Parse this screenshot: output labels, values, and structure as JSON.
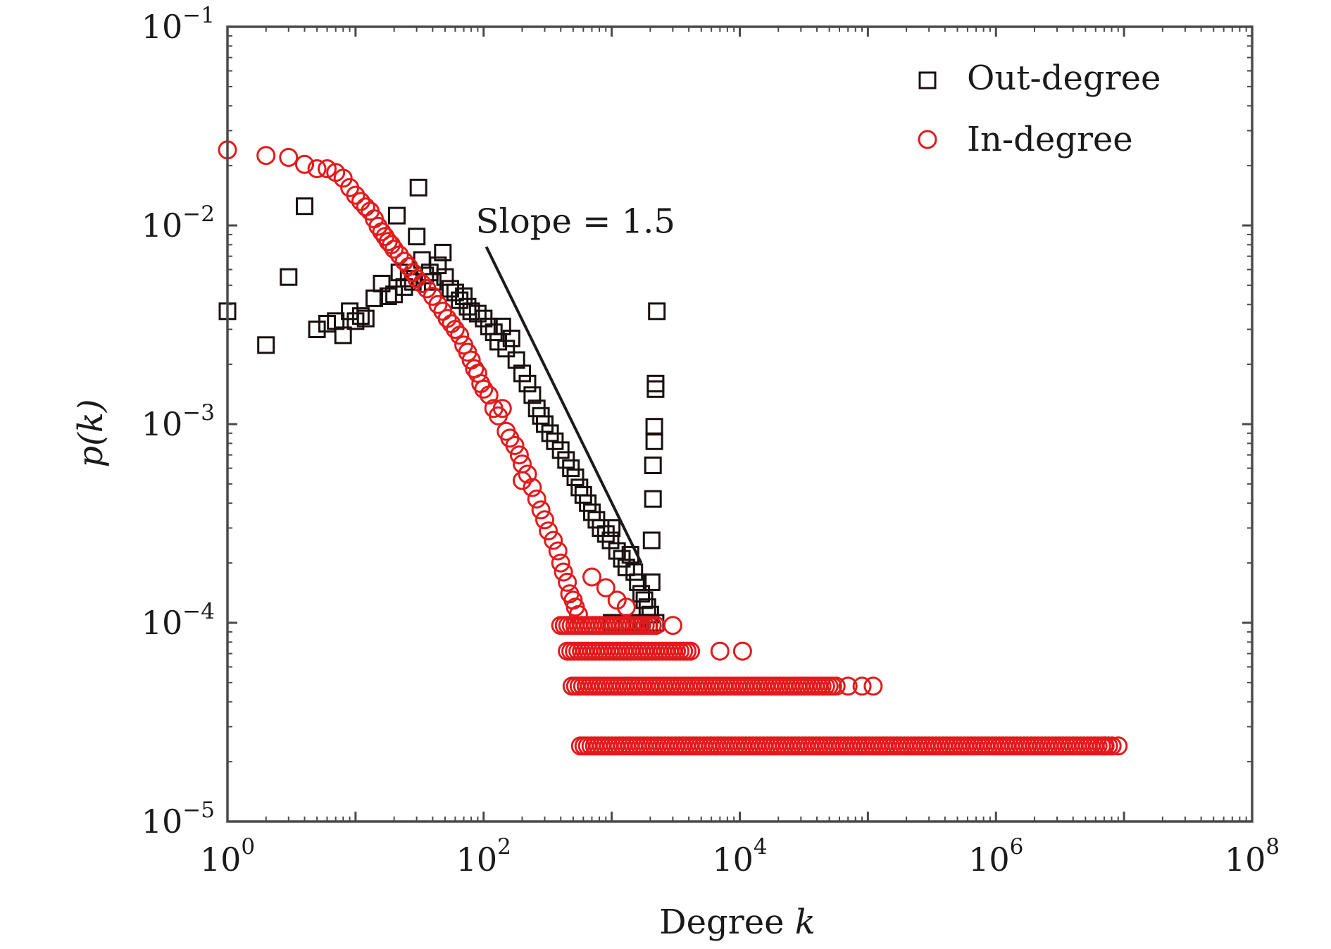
{
  "chart_data": {
    "type": "scatter",
    "scale": {
      "x": "log",
      "y": "log"
    },
    "xlabel": "Degree",
    "xlabel_var": "k",
    "ylabel": "p(k)",
    "xlim": [
      1,
      100000000
    ],
    "ylim": [
      1e-05,
      0.1
    ],
    "grid": false,
    "legend_position": "top-right",
    "x_ticks": [
      {
        "value": 1,
        "base": "10",
        "exp": "0"
      },
      {
        "value": 100,
        "base": "10",
        "exp": "2"
      },
      {
        "value": 10000,
        "base": "10",
        "exp": "4"
      },
      {
        "value": 1000000,
        "base": "10",
        "exp": "6"
      },
      {
        "value": 100000000,
        "base": "10",
        "exp": "8"
      }
    ],
    "y_ticks": [
      {
        "value": 0.1,
        "base": "10",
        "exp": "−1"
      },
      {
        "value": 0.01,
        "base": "10",
        "exp": "−2"
      },
      {
        "value": 0.001,
        "base": "10",
        "exp": "−3"
      },
      {
        "value": 0.0001,
        "base": "10",
        "exp": "−4"
      },
      {
        "value": 1e-05,
        "base": "10",
        "exp": "−5"
      }
    ],
    "annotations": [
      {
        "text": "Slope = 1.5",
        "line_from": [
          105,
          0.0078
        ],
        "line_to": [
          1700,
          0.0002
        ]
      }
    ],
    "series": [
      {
        "name": "Out-degree",
        "marker": "square",
        "color": "#1a1010",
        "points": [
          [
            1,
            0.0037
          ],
          [
            2,
            0.0025
          ],
          [
            3,
            0.0055
          ],
          [
            4,
            0.0125
          ],
          [
            5,
            0.003
          ],
          [
            6,
            0.0032
          ],
          [
            7,
            0.0033
          ],
          [
            8,
            0.0028
          ],
          [
            9,
            0.0037
          ],
          [
            10,
            0.0033
          ],
          [
            11,
            0.0035
          ],
          [
            12,
            0.0034
          ],
          [
            14,
            0.0043
          ],
          [
            16,
            0.0051
          ],
          [
            18,
            0.0044
          ],
          [
            20,
            0.0045
          ],
          [
            21,
            0.0112
          ],
          [
            22,
            0.0058
          ],
          [
            24,
            0.0049
          ],
          [
            26,
            0.0054
          ],
          [
            28,
            0.0052
          ],
          [
            30,
            0.0088
          ],
          [
            31,
            0.0155
          ],
          [
            33,
            0.0067
          ],
          [
            35,
            0.0056
          ],
          [
            38,
            0.0058
          ],
          [
            40,
            0.0052
          ],
          [
            44,
            0.0063
          ],
          [
            48,
            0.0073
          ],
          [
            50,
            0.0055
          ],
          [
            55,
            0.0048
          ],
          [
            60,
            0.0046
          ],
          [
            65,
            0.0042
          ],
          [
            70,
            0.0044
          ],
          [
            75,
            0.0039
          ],
          [
            80,
            0.0037
          ],
          [
            90,
            0.0036
          ],
          [
            100,
            0.0034
          ],
          [
            110,
            0.0031
          ],
          [
            120,
            0.0029
          ],
          [
            130,
            0.0026
          ],
          [
            140,
            0.0031
          ],
          [
            150,
            0.0024
          ],
          [
            165,
            0.0027
          ],
          [
            180,
            0.0021
          ],
          [
            200,
            0.0018
          ],
          [
            220,
            0.0016
          ],
          [
            240,
            0.0014
          ],
          [
            260,
            0.0012
          ],
          [
            280,
            0.0011
          ],
          [
            300,
            0.001
          ],
          [
            330,
            0.0009
          ],
          [
            360,
            0.00082
          ],
          [
            400,
            0.00074
          ],
          [
            440,
            0.00066
          ],
          [
            480,
            0.0006
          ],
          [
            520,
            0.00054
          ],
          [
            560,
            0.00048
          ],
          [
            600,
            0.00044
          ],
          [
            650,
            0.0004
          ],
          [
            700,
            0.00036
          ],
          [
            760,
            0.00033
          ],
          [
            820,
            0.0003
          ],
          [
            900,
            0.00028
          ],
          [
            980,
            0.00026
          ],
          [
            1000,
            0.0003
          ],
          [
            1100,
            0.00023
          ],
          [
            1200,
            0.00021
          ],
          [
            1300,
            0.00019
          ],
          [
            1400,
            0.00022
          ],
          [
            1500,
            0.00018
          ],
          [
            1600,
            0.00016
          ],
          [
            1700,
            0.00014
          ],
          [
            1800,
            0.00013
          ],
          [
            1900,
            0.00012
          ],
          [
            1950,
            0.0001
          ],
          [
            2000,
            0.00011
          ],
          [
            2050,
            0.00016
          ],
          [
            2050,
            0.00026
          ],
          [
            2100,
            0.00042
          ],
          [
            2100,
            0.00062
          ],
          [
            2150,
            0.00082
          ],
          [
            2150,
            0.00097
          ],
          [
            2200,
            0.0015
          ],
          [
            2200,
            0.0016
          ],
          [
            2250,
            0.0037
          ],
          [
            1000,
            0.0001
          ],
          [
            1300,
            0.0001
          ],
          [
            1600,
            0.0001
          ],
          [
            2200,
            0.0001
          ]
        ]
      },
      {
        "name": "In-degree",
        "marker": "circle",
        "color": "#e31a1c",
        "points": [
          [
            1,
            0.024
          ],
          [
            2,
            0.0225
          ],
          [
            3,
            0.022
          ],
          [
            4,
            0.0203
          ],
          [
            5,
            0.0193
          ],
          [
            6,
            0.0193
          ],
          [
            7,
            0.0185
          ],
          [
            8,
            0.0173
          ],
          [
            9,
            0.0155
          ],
          [
            10,
            0.0142
          ],
          [
            11,
            0.0132
          ],
          [
            12,
            0.0124
          ],
          [
            13,
            0.0118
          ],
          [
            14,
            0.0108
          ],
          [
            15,
            0.0099
          ],
          [
            16,
            0.0093
          ],
          [
            17,
            0.0088
          ],
          [
            18,
            0.0083
          ],
          [
            19,
            0.008
          ],
          [
            20,
            0.0076
          ],
          [
            22,
            0.0071
          ],
          [
            24,
            0.0066
          ],
          [
            26,
            0.0062
          ],
          [
            28,
            0.0058
          ],
          [
            30,
            0.0054
          ],
          [
            33,
            0.0051
          ],
          [
            36,
            0.0048
          ],
          [
            40,
            0.0044
          ],
          [
            44,
            0.004
          ],
          [
            48,
            0.0037
          ],
          [
            52,
            0.0034
          ],
          [
            56,
            0.0032
          ],
          [
            60,
            0.003
          ],
          [
            65,
            0.0028
          ],
          [
            70,
            0.0025
          ],
          [
            75,
            0.0023
          ],
          [
            80,
            0.0021
          ],
          [
            85,
            0.0019
          ],
          [
            90,
            0.0018
          ],
          [
            95,
            0.0016
          ],
          [
            100,
            0.0015
          ],
          [
            110,
            0.0014
          ],
          [
            120,
            0.0012
          ],
          [
            130,
            0.0011
          ],
          [
            140,
            0.0012
          ],
          [
            150,
            0.00092
          ],
          [
            160,
            0.00085
          ],
          [
            175,
            0.00078
          ],
          [
            190,
            0.0007
          ],
          [
            200,
            0.00063
          ],
          [
            200,
            0.00052
          ],
          [
            220,
            0.00056
          ],
          [
            240,
            0.00048
          ],
          [
            260,
            0.00042
          ],
          [
            280,
            0.00037
          ],
          [
            300,
            0.00033
          ],
          [
            320,
            0.00029
          ],
          [
            350,
            0.00026
          ],
          [
            380,
            0.00023
          ],
          [
            400,
            0.0002
          ],
          [
            420,
            0.00018
          ],
          [
            450,
            0.00016
          ],
          [
            470,
            0.00014
          ],
          [
            500,
            0.00013
          ],
          [
            520,
            0.00012
          ],
          [
            550,
            0.00011
          ],
          [
            700,
            0.00017
          ],
          [
            900,
            0.00015
          ],
          [
            1100,
            0.00013
          ],
          [
            1300,
            0.00012
          ],
          [
            3000,
            9.7e-05
          ],
          [
            7000,
            7.2e-05
          ],
          [
            10500,
            7.2e-05
          ],
          [
            70000,
            4.8e-05
          ],
          [
            90000,
            4.8e-05
          ],
          [
            110000,
            4.8e-05
          ],
          [
            7000000,
            2.4e-05
          ],
          [
            9000000,
            2.4e-05
          ]
        ],
        "bands": [
          {
            "y": 9.7e-05,
            "x_from": 400,
            "x_to": 2300
          },
          {
            "y": 7.2e-05,
            "x_from": 450,
            "x_to": 4200
          },
          {
            "y": 4.8e-05,
            "x_from": 490,
            "x_to": 60000
          },
          {
            "y": 2.4e-05,
            "x_from": 570,
            "x_to": 8500000
          }
        ]
      }
    ]
  }
}
